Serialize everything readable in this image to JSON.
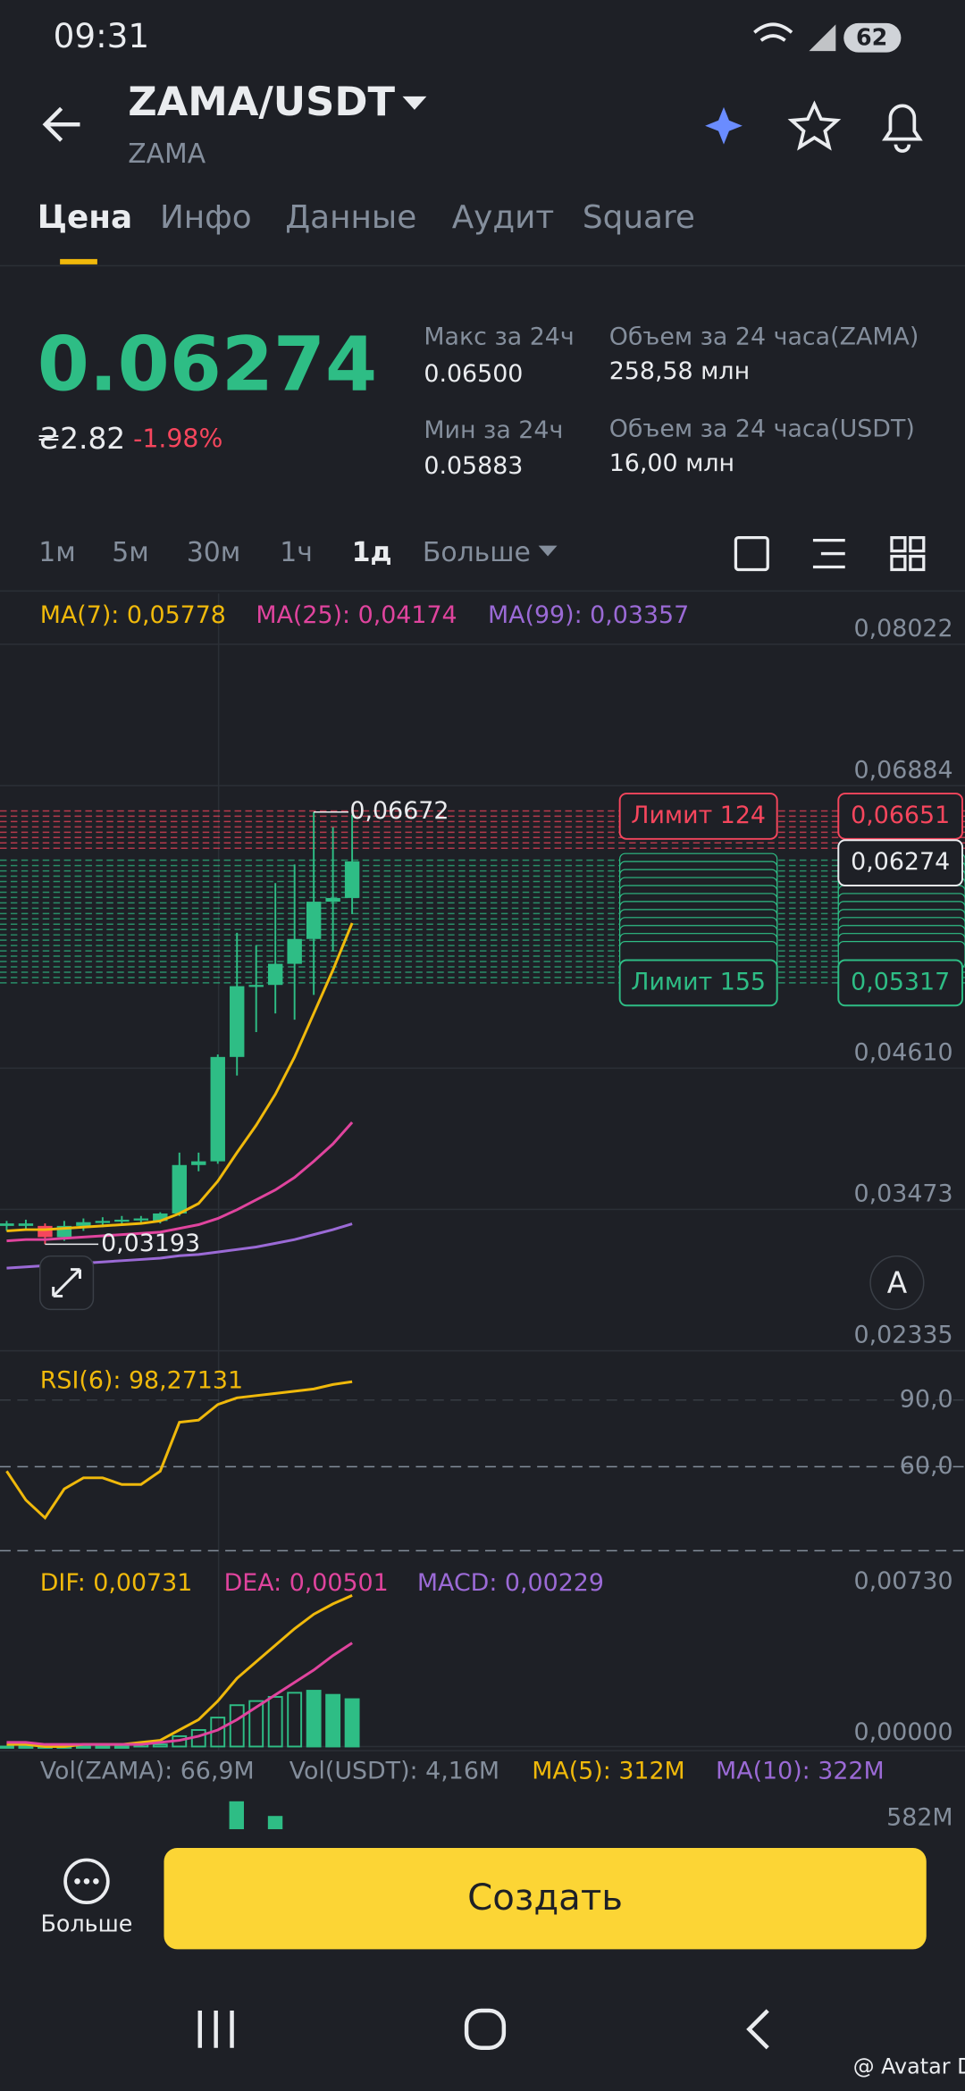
{
  "status_bar": {
    "time": "09:31",
    "battery": "62"
  },
  "header": {
    "pair": "ZAMA/USDT",
    "base": "ZAMA"
  },
  "tabs": [
    "Цена",
    "Инфо",
    "Данные",
    "Аудит",
    "Square"
  ],
  "price": {
    "last": "0.06274",
    "fiat": "₴2.82",
    "change": "-1.98%"
  },
  "stats": [
    {
      "label": "Макс за 24ч",
      "value": "0.06500"
    },
    {
      "label": "Мин за 24ч",
      "value": "0.05883"
    },
    {
      "label": "Объем за 24 часа(ZAMA)",
      "value": "258,58 млн"
    },
    {
      "label": "Объем за 24 часа(USDT)",
      "value": "16,00 млн"
    }
  ],
  "intervals": [
    "1м",
    "5м",
    "30м",
    "1ч",
    "1д",
    "Больше"
  ],
  "chart_data": {
    "type": "candlestick",
    "up_color": "#2ebd85",
    "down_color": "#f6465d",
    "ylim": [
      0.02335,
      0.0843
    ],
    "yticks": [
      {
        "value": 0.08022,
        "label": "0,08022"
      },
      {
        "value": 0.06884,
        "label": "0,06884"
      },
      {
        "value": 0.0461,
        "label": "0,04610"
      },
      {
        "value": 0.03473,
        "label": "0,03473"
      },
      {
        "value": 0.02335,
        "label": "0,02335"
      }
    ],
    "candles": [
      {
        "open": 0.0334,
        "high": 0.0338,
        "low": 0.033,
        "close": 0.0336
      },
      {
        "open": 0.0334,
        "high": 0.0339,
        "low": 0.0331,
        "close": 0.0336
      },
      {
        "open": 0.0334,
        "high": 0.0336,
        "low": 0.03193,
        "close": 0.0325
      },
      {
        "open": 0.0325,
        "high": 0.0338,
        "low": 0.0322,
        "close": 0.0334
      },
      {
        "open": 0.0334,
        "high": 0.034,
        "low": 0.033,
        "close": 0.0337
      },
      {
        "open": 0.0337,
        "high": 0.0341,
        "low": 0.0333,
        "close": 0.0338
      },
      {
        "open": 0.0338,
        "high": 0.0342,
        "low": 0.0334,
        "close": 0.0339
      },
      {
        "open": 0.0339,
        "high": 0.0342,
        "low": 0.0335,
        "close": 0.034
      },
      {
        "open": 0.0338,
        "high": 0.0345,
        "low": 0.0336,
        "close": 0.0344
      },
      {
        "open": 0.0344,
        "high": 0.0393,
        "low": 0.0342,
        "close": 0.0383
      },
      {
        "open": 0.0383,
        "high": 0.0393,
        "low": 0.0378,
        "close": 0.0386
      },
      {
        "open": 0.0386,
        "high": 0.0472,
        "low": 0.0384,
        "close": 0.047
      },
      {
        "open": 0.047,
        "high": 0.057,
        "low": 0.0455,
        "close": 0.0527
      },
      {
        "open": 0.0527,
        "high": 0.056,
        "low": 0.049,
        "close": 0.0528
      },
      {
        "open": 0.0528,
        "high": 0.061,
        "low": 0.0505,
        "close": 0.0545
      },
      {
        "open": 0.0545,
        "high": 0.0625,
        "low": 0.05,
        "close": 0.0565
      },
      {
        "open": 0.0565,
        "high": 0.06672,
        "low": 0.052,
        "close": 0.0595
      },
      {
        "open": 0.0595,
        "high": 0.0655,
        "low": 0.0555,
        "close": 0.0598
      },
      {
        "open": 0.0598,
        "high": 0.0665,
        "low": 0.0585,
        "close": 0.06274
      }
    ],
    "series": [
      {
        "name": "MA(7): 0,05778",
        "color": "#f0b90b",
        "values": [
          0.033,
          0.0331,
          0.0331,
          0.0332,
          0.0333,
          0.0334,
          0.0335,
          0.0336,
          0.0338,
          0.0344,
          0.0352,
          0.037,
          0.0393,
          0.0415,
          0.044,
          0.047,
          0.0505,
          0.054,
          0.05778
        ]
      },
      {
        "name": "MA(25): 0,04174",
        "color": "#e0449e",
        "values": [
          0.0322,
          0.0323,
          0.0323,
          0.0324,
          0.0325,
          0.0326,
          0.0327,
          0.0328,
          0.0329,
          0.0332,
          0.0335,
          0.034,
          0.0347,
          0.0355,
          0.0363,
          0.0373,
          0.0386,
          0.04,
          0.04174
        ]
      },
      {
        "name": "MA(99): 0,03357",
        "color": "#9b6ad6",
        "values": [
          0.03,
          0.0301,
          0.0302,
          0.0303,
          0.0304,
          0.0305,
          0.0306,
          0.0307,
          0.0308,
          0.031,
          0.0311,
          0.0313,
          0.0315,
          0.0317,
          0.032,
          0.0323,
          0.0327,
          0.0331,
          0.03357
        ]
      }
    ],
    "high_label": "0,06672",
    "low_label": "0,03193",
    "orders": {
      "sell_label": "Лимит 124",
      "buy_label": "Лимит 155",
      "sell_price": "0,06651",
      "last_price": "0,06274",
      "buy_price": "0,05317"
    },
    "auto_button": "A",
    "rsi": {
      "name": "RSI(6): 98,27131",
      "color": "#f0b90b",
      "ylim": [
        22.2,
        112.2
      ],
      "yticks": [
        {
          "value": 90,
          "label": "90,0"
        },
        {
          "value": 60,
          "label": "60,0"
        }
      ],
      "values": [
        58,
        45,
        37,
        50,
        55,
        55,
        52,
        52,
        58,
        80,
        81,
        88,
        91,
        92,
        93,
        94,
        95,
        97,
        98.27131
      ]
    },
    "macd": {
      "ylim": [
        -0.0002,
        0.0087
      ],
      "yticks": [
        {
          "value": 0.0073,
          "label": "0,00730"
        },
        {
          "value": 0,
          "label": "0,00000"
        }
      ],
      "bar_color": "#2ebd85",
      "series": [
        {
          "name": "DIF: 0,00731",
          "color": "#f0b90b",
          "values": [
            0.0001,
            0.0001,
            0,
            0,
            0.0001,
            0.0001,
            0.0001,
            0.0002,
            0.0003,
            0.0008,
            0.0013,
            0.0022,
            0.0033,
            0.0041,
            0.0049,
            0.0057,
            0.0064,
            0.0069,
            0.00731
          ]
        },
        {
          "name": "DEA: 0,00501",
          "color": "#e0449e",
          "values": [
            0.0002,
            0.0002,
            0.0001,
            0.0001,
            0.0001,
            0.0001,
            0.0001,
            0.0001,
            0.0002,
            0.0003,
            0.0005,
            0.0008,
            0.0013,
            0.0019,
            0.0025,
            0.0031,
            0.0037,
            0.0044,
            0.00501
          ]
        }
      ],
      "histogram": {
        "name": "MACD: 0,00229",
        "color": "#9b6ad6",
        "values": [
          0,
          0,
          0,
          0,
          0,
          0,
          0,
          0.0001,
          0.0001,
          0.0005,
          0.0008,
          0.0014,
          0.002,
          0.0022,
          0.0024,
          0.0026,
          0.0027,
          0.0025,
          0.00229
        ]
      }
    },
    "volume": {
      "legend": [
        {
          "text": "Vol(ZAMA): 66,9M",
          "color": "#848e9c"
        },
        {
          "text": "Vol(USDT): 4,16M",
          "color": "#848e9c"
        },
        {
          "text": "MA(5): 312M",
          "color": "#f0b90b"
        },
        {
          "text": "MA(10): 322M",
          "color": "#9b6ad6"
        }
      ],
      "ytick": {
        "value": 582000000,
        "label": "582M"
      }
    }
  },
  "footer": {
    "more": "Больше",
    "create": "Создать"
  },
  "watermark": "@ Avatar D"
}
